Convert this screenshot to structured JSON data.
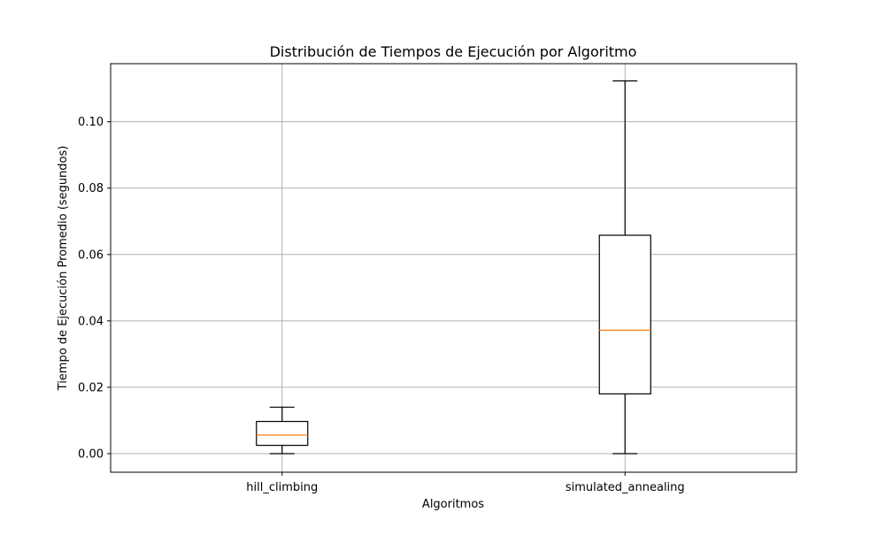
{
  "chart_data": {
    "type": "box",
    "title": "Distribución de Tiempos de Ejecución por Algoritmo",
    "xlabel": "Algoritmos",
    "ylabel": "Tiempo de Ejecución Promedio (segundos)",
    "ylim": [
      -0.0056,
      0.1175
    ],
    "yticks": [
      0.0,
      0.02,
      0.04,
      0.06,
      0.08,
      0.1
    ],
    "ytick_labels": [
      "0.00",
      "0.02",
      "0.04",
      "0.06",
      "0.08",
      "0.10"
    ],
    "grid": true,
    "categories": [
      "hill_climbing",
      "simulated_annealing"
    ],
    "series": [
      {
        "category": "hill_climbing",
        "whisker_low": 0.0,
        "q1": 0.0025,
        "median": 0.0056,
        "q3": 0.0097,
        "whisker_high": 0.014
      },
      {
        "category": "simulated_annealing",
        "whisker_low": 0.0,
        "q1": 0.018,
        "median": 0.0372,
        "q3": 0.0658,
        "whisker_high": 0.1123
      }
    ],
    "colors": {
      "box": "#000000",
      "median": "#ff7f0e",
      "grid": "#b0b0b0"
    }
  }
}
